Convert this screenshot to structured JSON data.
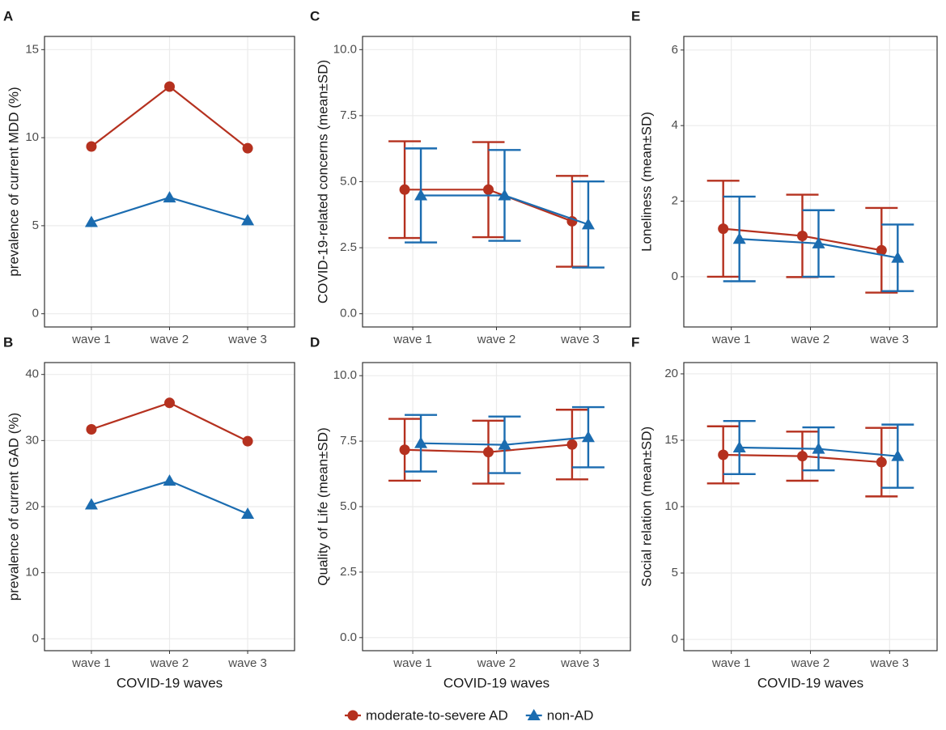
{
  "chart_data": [
    {
      "type": "line",
      "label": "A",
      "ylabel": "prevalence of current MDD (%)",
      "categories": [
        "wave 1",
        "wave 2",
        "wave 3"
      ],
      "ylim": [
        -0.75,
        15.75
      ],
      "yticks": [
        0,
        5,
        10,
        15
      ],
      "grid": true,
      "series": [
        {
          "name": "moderate-to-severe AD",
          "color": "#b5311f",
          "marker": "circle",
          "values": [
            9.5,
            12.9,
            9.4
          ]
        },
        {
          "name": "non-AD",
          "color": "#1b6cb0",
          "marker": "triangle",
          "values": [
            5.2,
            6.6,
            5.3
          ]
        }
      ]
    },
    {
      "type": "line",
      "label": "B",
      "ylabel": "prevalence of current GAD (%)",
      "xlabel": "COVID-19 waves",
      "categories": [
        "wave 1",
        "wave 2",
        "wave 3"
      ],
      "ylim": [
        -1.8,
        41.8
      ],
      "yticks": [
        0,
        10,
        20,
        30,
        40
      ],
      "grid": true,
      "series": [
        {
          "name": "moderate-to-severe AD",
          "color": "#b5311f",
          "marker": "circle",
          "values": [
            31.7,
            35.7,
            29.9
          ]
        },
        {
          "name": "non-AD",
          "color": "#1b6cb0",
          "marker": "triangle",
          "values": [
            20.3,
            23.9,
            18.9
          ]
        }
      ]
    },
    {
      "type": "line",
      "label": "C",
      "ylabel": "COVID-19-related concerns (mean±SD)",
      "categories": [
        "wave 1",
        "wave 2",
        "wave 3"
      ],
      "ylim": [
        -0.5,
        10.5
      ],
      "yticks": [
        {
          "value": 0,
          "label": "0.0"
        },
        {
          "value": 2.5,
          "label": "2.5"
        },
        {
          "value": 5,
          "label": "5.0"
        },
        {
          "value": 7.5,
          "label": "7.5"
        },
        {
          "value": 10,
          "label": "10.0"
        }
      ],
      "grid": true,
      "series": [
        {
          "name": "moderate-to-severe AD",
          "color": "#b5311f",
          "marker": "circle",
          "values": [
            4.7,
            4.7,
            3.5
          ],
          "errors": [
            1.83,
            1.8,
            1.72
          ]
        },
        {
          "name": "non-AD",
          "color": "#1b6cb0",
          "marker": "triangle",
          "values": [
            4.48,
            4.48,
            3.38
          ],
          "errors": [
            1.78,
            1.72,
            1.63
          ]
        }
      ]
    },
    {
      "type": "line",
      "label": "D",
      "ylabel": "Quality of Life (mean±SD)",
      "xlabel": "COVID-19 waves",
      "categories": [
        "wave 1",
        "wave 2",
        "wave 3"
      ],
      "ylim": [
        -0.5,
        10.5
      ],
      "yticks": [
        {
          "value": 0,
          "label": "0.0"
        },
        {
          "value": 2.5,
          "label": "2.5"
        },
        {
          "value": 5,
          "label": "5.0"
        },
        {
          "value": 7.5,
          "label": "7.5"
        },
        {
          "value": 10,
          "label": "10.0"
        }
      ],
      "grid": true,
      "series": [
        {
          "name": "moderate-to-severe AD",
          "color": "#b5311f",
          "marker": "circle",
          "values": [
            7.17,
            7.08,
            7.37
          ],
          "errors": [
            1.18,
            1.2,
            1.33
          ]
        },
        {
          "name": "non-AD",
          "color": "#1b6cb0",
          "marker": "triangle",
          "values": [
            7.42,
            7.36,
            7.65
          ],
          "errors": [
            1.08,
            1.08,
            1.15
          ]
        }
      ]
    },
    {
      "type": "line",
      "label": "E",
      "ylabel": "Loneliness (mean±SD)",
      "categories": [
        "wave 1",
        "wave 2",
        "wave 3"
      ],
      "ylim": [
        -1.33,
        6.36
      ],
      "yticks": [
        0,
        2,
        4,
        6
      ],
      "grid": true,
      "series": [
        {
          "name": "moderate-to-severe AD",
          "color": "#b5311f",
          "marker": "circle",
          "values": [
            1.27,
            1.08,
            0.7
          ],
          "errors": [
            1.27,
            1.09,
            1.12
          ]
        },
        {
          "name": "non-AD",
          "color": "#1b6cb0",
          "marker": "triangle",
          "values": [
            1.0,
            0.88,
            0.5
          ],
          "errors": [
            1.12,
            0.88,
            0.88
          ]
        }
      ]
    },
    {
      "type": "line",
      "label": "F",
      "ylabel": "Social relation (mean±SD)",
      "xlabel": "COVID-19 waves",
      "categories": [
        "wave 1",
        "wave 2",
        "wave 3"
      ],
      "ylim": [
        -0.85,
        20.85
      ],
      "yticks": [
        0,
        5,
        10,
        15,
        20
      ],
      "grid": true,
      "series": [
        {
          "name": "moderate-to-severe AD",
          "color": "#b5311f",
          "marker": "circle",
          "values": [
            13.9,
            13.8,
            13.35
          ],
          "errors": [
            2.15,
            1.85,
            2.58
          ]
        },
        {
          "name": "non-AD",
          "color": "#1b6cb0",
          "marker": "triangle",
          "values": [
            14.45,
            14.35,
            13.8
          ],
          "errors": [
            2.0,
            1.62,
            2.38
          ]
        }
      ]
    }
  ]
}
